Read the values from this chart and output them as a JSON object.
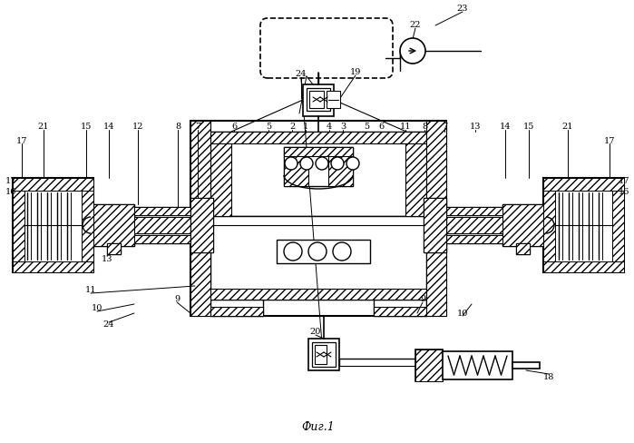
{
  "caption": "Фиг.1",
  "bg_color": "#ffffff",
  "fig_width": 6.99,
  "fig_height": 4.88,
  "dpi": 100
}
